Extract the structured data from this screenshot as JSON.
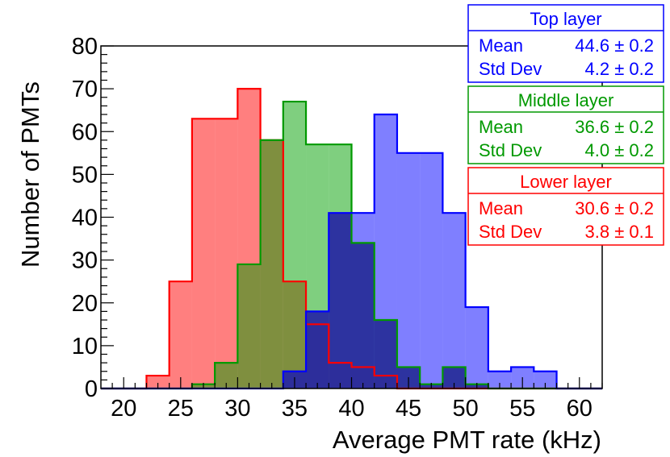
{
  "chart_data": {
    "type": "histogram",
    "xlabel": "Average PMT rate (kHz)",
    "ylabel": "Number of PMTs",
    "xlim": [
      18,
      62
    ],
    "ylim": [
      0,
      80
    ],
    "x_ticks": [
      20,
      25,
      30,
      35,
      40,
      45,
      50,
      55,
      60
    ],
    "y_ticks": [
      0,
      10,
      20,
      30,
      40,
      50,
      60,
      70,
      80
    ],
    "bin_edges": [
      18,
      20,
      22,
      24,
      26,
      28,
      30,
      32,
      34,
      36,
      38,
      40,
      42,
      44,
      46,
      48,
      50,
      52,
      54,
      56,
      58,
      60,
      62
    ],
    "overlay_color": "#2a2a9a",
    "series": [
      {
        "name": "Lower layer",
        "color": "#ff0000",
        "fill": "rgba(255,0,0,0.5)",
        "values": [
          0,
          0,
          3,
          25,
          63,
          63,
          70,
          58,
          25,
          15,
          6,
          5,
          3,
          0,
          0,
          0,
          0,
          0,
          0,
          0,
          0,
          0
        ],
        "mean": "30.6 ± 0.2",
        "std_dev": "3.8 ± 0.1"
      },
      {
        "name": "Middle layer",
        "color": "#009900",
        "fill": "rgba(0,160,0,0.5)",
        "values": [
          0,
          0,
          0,
          0,
          1,
          6,
          29,
          58,
          67,
          57,
          57,
          34,
          16,
          5,
          1,
          5,
          1,
          0,
          0,
          0,
          0,
          0
        ],
        "mean": "36.6 ± 0.2",
        "std_dev": "4.0 ± 0.2"
      },
      {
        "name": "Top layer",
        "color": "#0000ff",
        "fill": "rgba(0,0,255,0.5)",
        "values": [
          0,
          0,
          0,
          0,
          0,
          0,
          0,
          0,
          4,
          18,
          41,
          41,
          64,
          55,
          55,
          41,
          19,
          4,
          5,
          4,
          0,
          0
        ],
        "mean": "44.6 ± 0.2",
        "std_dev": "4.2 ± 0.2"
      }
    ],
    "stat_boxes": [
      {
        "title": "Top layer",
        "mean_label": "Mean",
        "mean": "44.6 ± 0.2",
        "std_label": "Std Dev",
        "std": "4.2 ± 0.2",
        "color": "#0000ff"
      },
      {
        "title": "Middle layer",
        "mean_label": "Mean",
        "mean": "36.6 ± 0.2",
        "std_label": "Std Dev",
        "std": "4.0 ± 0.2",
        "color": "#009900"
      },
      {
        "title": "Lower layer",
        "mean_label": "Mean",
        "mean": "30.6 ± 0.2",
        "std_label": "Std Dev",
        "std": "3.8 ± 0.1",
        "color": "#ff0000"
      }
    ]
  }
}
